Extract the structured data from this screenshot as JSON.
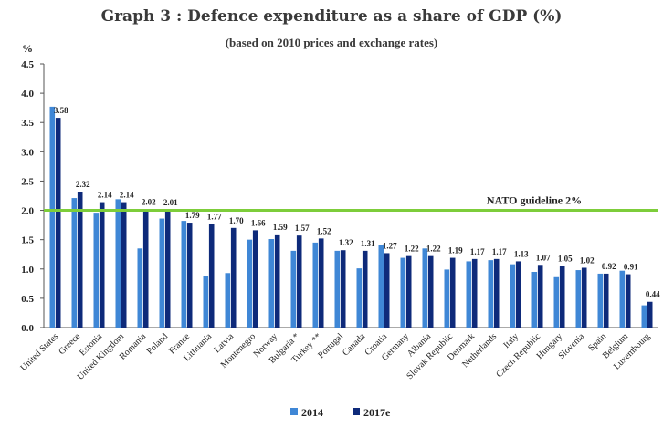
{
  "chart_data": {
    "type": "bar",
    "title": "Graph 3 : Defence expenditure as a share of GDP (%)",
    "subtitle": "(based on 2010 prices and exchange rates)",
    "ylabel": "%",
    "xlabel": "",
    "ylim": [
      0,
      4.5
    ],
    "yticks": [
      "0.0",
      "0.5",
      "1.0",
      "1.5",
      "2.0",
      "2.5",
      "3.0",
      "3.5",
      "4.0",
      "4.5"
    ],
    "categories": [
      "United States",
      "Greece",
      "Estonia",
      "United Kingdom",
      "Romania",
      "Poland",
      "France",
      "Lithuania",
      "Latvia",
      "Montenegro",
      "Norway",
      "Bulgaria *",
      "Turkey **",
      "Portugal",
      "Canada",
      "Croatia",
      "Germany",
      "Albania",
      "Slovak Republic",
      "Denmark",
      "Netherlands",
      "Italy",
      "Czech Republic",
      "Hungary",
      "Slovenia",
      "Spain",
      "Belgium",
      "Luxembourg"
    ],
    "series": [
      {
        "name": "2014",
        "color": "#3f87d6",
        "values": [
          3.77,
          2.21,
          1.96,
          2.19,
          1.35,
          1.86,
          1.82,
          0.88,
          0.93,
          1.5,
          1.51,
          1.31,
          1.45,
          1.31,
          1.01,
          1.41,
          1.19,
          1.35,
          0.99,
          1.13,
          1.15,
          1.08,
          0.95,
          0.86,
          0.98,
          0.92,
          0.97,
          0.38
        ]
      },
      {
        "name": "2017e",
        "color": "#0e2a7a",
        "values": [
          3.58,
          2.32,
          2.14,
          2.14,
          2.02,
          2.01,
          1.79,
          1.77,
          1.7,
          1.66,
          1.59,
          1.57,
          1.52,
          1.32,
          1.31,
          1.27,
          1.22,
          1.22,
          1.19,
          1.17,
          1.17,
          1.13,
          1.07,
          1.05,
          1.02,
          0.92,
          0.91,
          0.44
        ]
      }
    ],
    "data_labels": [
      "3.58",
      "2.32",
      "2.14",
      "2.14",
      "2.02",
      "2.01",
      "1.79",
      "1.77",
      "1.70",
      "1.66",
      "1.59",
      "1.57",
      "1.52",
      "1.32",
      "1.31",
      "1.27",
      "1.22",
      "1.22",
      "1.19",
      "1.17",
      "1.17",
      "1.13",
      "1.07",
      "1.05",
      "1.02",
      "0.92",
      "0.91",
      "0.44"
    ],
    "reference_line": {
      "value": 2.0,
      "label": "NATO guideline 2%",
      "color": "#7dcd3a"
    },
    "legend": [
      "2014",
      "2017e"
    ],
    "legend_position": "bottom-center"
  }
}
